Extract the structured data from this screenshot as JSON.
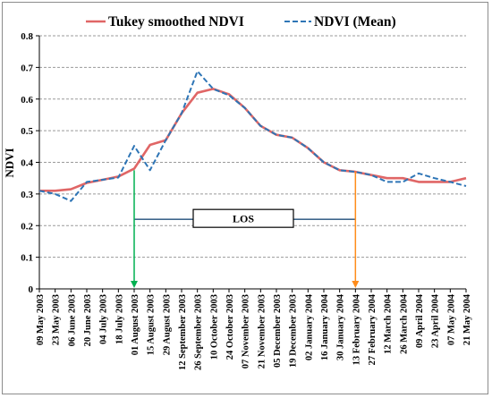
{
  "chart_data": {
    "type": "line",
    "xlabel": "",
    "ylabel": "NDVI",
    "ylim": [
      0,
      0.8
    ],
    "yticks": [
      "0",
      "0.1",
      "0.2",
      "0.3",
      "0.4",
      "0.5",
      "0.6",
      "0.7",
      "0.8"
    ],
    "grid": "horizontal dashed",
    "legend_position": "top",
    "categories": [
      "09 May 2003",
      "23 May 2003",
      "06 June 2003",
      "20 June 2003",
      "04 July 2003",
      "18 July 2003",
      "01 August 2003",
      "15 August 2003",
      "29 August 2003",
      "12 September 2003",
      "26 September 2003",
      "10 October 2003",
      "24 October 2003",
      "07 November 2003",
      "21 November 2003",
      "05 December 2003",
      "19 December 2003",
      "02 January 2004",
      "16 January 2004",
      "30 January 2004",
      "13 February 2004",
      "27 February 2004",
      "12 March 2004",
      "26 March 2004",
      "09 April 2004",
      "23 April 2004",
      "07 May 2004",
      "21 May 2004"
    ],
    "series": [
      {
        "name": "Tukey smoothed NDVI",
        "color": "#e06666",
        "style": "solid",
        "values": [
          0.31,
          0.31,
          0.315,
          0.335,
          0.345,
          0.355,
          0.38,
          0.455,
          0.47,
          0.555,
          0.62,
          0.632,
          0.615,
          0.572,
          0.515,
          0.487,
          0.478,
          0.445,
          0.4,
          0.375,
          0.37,
          0.36,
          0.35,
          0.35,
          0.338,
          0.338,
          0.338,
          0.35
        ]
      },
      {
        "name": "NDVI (Mean)",
        "color": "#2e75b6",
        "style": "dashed",
        "values": [
          0.31,
          0.3,
          0.278,
          0.338,
          0.345,
          0.352,
          0.452,
          0.375,
          0.47,
          0.555,
          0.688,
          0.632,
          0.612,
          0.572,
          0.515,
          0.487,
          0.478,
          0.445,
          0.4,
          0.375,
          0.37,
          0.36,
          0.338,
          0.338,
          0.365,
          0.35,
          0.338,
          0.325
        ]
      }
    ],
    "annotations": {
      "los_label": "LOS",
      "los_y": 0.22,
      "start_index": 6,
      "start_value": 0.375,
      "start_color": "#00b050",
      "end_index": 20,
      "end_value": 0.37,
      "end_color": "#ff8c1a"
    }
  }
}
